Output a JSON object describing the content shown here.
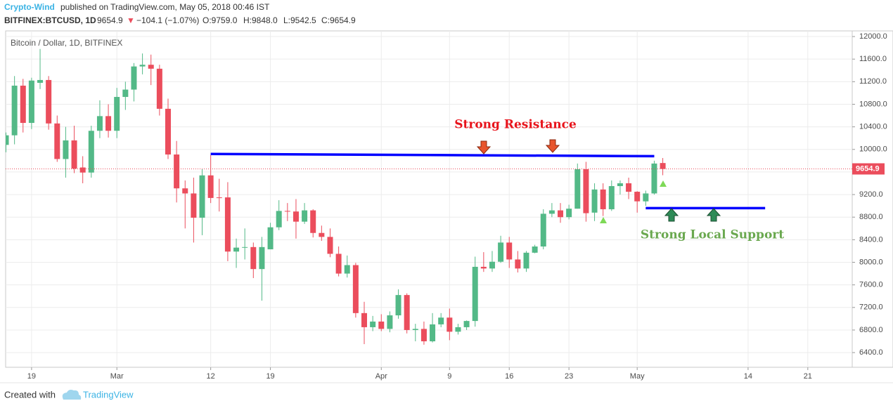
{
  "header": {
    "author": "Crypto-Wind",
    "published": "published on TradingView.com, May 05, 2018 00:46 IST"
  },
  "quote": {
    "symbol": "BITFINEX:BTCUSD, 1D",
    "last": "9654.9",
    "arrow": "▼",
    "change": "−104.1 (−1.07%)",
    "open": "O:9759.0",
    "high": "H:9848.0",
    "low": "L:9542.5",
    "close": "C:9654.9"
  },
  "chart_data": {
    "type": "candlestick",
    "title": "Bitcoin / Dollar, 1D, BITFINEX",
    "x": [
      "2018-02-16",
      "2018-02-17",
      "2018-02-18",
      "2018-02-19",
      "2018-02-20",
      "2018-02-21",
      "2018-02-22",
      "2018-02-23",
      "2018-02-24",
      "2018-02-25",
      "2018-02-26",
      "2018-02-27",
      "2018-02-28",
      "2018-03-01",
      "2018-03-02",
      "2018-03-03",
      "2018-03-04",
      "2018-03-05",
      "2018-03-06",
      "2018-03-07",
      "2018-03-08",
      "2018-03-09",
      "2018-03-10",
      "2018-03-11",
      "2018-03-12",
      "2018-03-13",
      "2018-03-14",
      "2018-03-15",
      "2018-03-16",
      "2018-03-17",
      "2018-03-18",
      "2018-03-19",
      "2018-03-20",
      "2018-03-21",
      "2018-03-22",
      "2018-03-23",
      "2018-03-24",
      "2018-03-25",
      "2018-03-26",
      "2018-03-27",
      "2018-03-28",
      "2018-03-29",
      "2018-03-30",
      "2018-03-31",
      "2018-04-01",
      "2018-04-02",
      "2018-04-03",
      "2018-04-04",
      "2018-04-05",
      "2018-04-06",
      "2018-04-07",
      "2018-04-08",
      "2018-04-09",
      "2018-04-10",
      "2018-04-11",
      "2018-04-12",
      "2018-04-13",
      "2018-04-14",
      "2018-04-15",
      "2018-04-16",
      "2018-04-17",
      "2018-04-18",
      "2018-04-19",
      "2018-04-20",
      "2018-04-21",
      "2018-04-22",
      "2018-04-23",
      "2018-04-24",
      "2018-04-25",
      "2018-04-26",
      "2018-04-27",
      "2018-04-28",
      "2018-04-29",
      "2018-04-30",
      "2018-05-01",
      "2018-05-02",
      "2018-05-03",
      "2018-05-04"
    ],
    "open": [
      10080,
      10250,
      11130,
      10470,
      11180,
      11230,
      10460,
      9830,
      10160,
      9680,
      9590,
      10330,
      10590,
      10330,
      10930,
      11060,
      11470,
      11500,
      11430,
      10720,
      9910,
      9310,
      9220,
      8790,
      9540,
      9150,
      9150,
      8190,
      8260,
      8270,
      7880,
      8230,
      8620,
      8910,
      8900,
      8720,
      8920,
      8520,
      8450,
      8150,
      7800,
      7950,
      7100,
      6850,
      6950,
      6820,
      7060,
      7420,
      6800,
      6820,
      6600,
      6900,
      7020,
      6770,
      6850,
      6960,
      7920,
      7890,
      8010,
      8350,
      8050,
      7890,
      8170,
      8280,
      8860,
      8920,
      8800,
      8950,
      9650,
      8880,
      9290,
      8940,
      9350,
      9400,
      9250,
      9080,
      9220,
      9759
    ],
    "high": [
      10300,
      11300,
      11250,
      11270,
      11780,
      11300,
      10600,
      10400,
      10420,
      9880,
      10420,
      10870,
      10800,
      11090,
      11200,
      11530,
      11700,
      11680,
      11500,
      10900,
      10150,
      9450,
      9500,
      9650,
      9900,
      9480,
      9420,
      8420,
      8600,
      8350,
      8450,
      8700,
      9100,
      9050,
      9120,
      9050,
      8940,
      8650,
      8600,
      8280,
      8120,
      7990,
      7300,
      7050,
      7080,
      7130,
      7520,
      7450,
      6910,
      6950,
      7100,
      7100,
      7180,
      6910,
      6970,
      8100,
      8180,
      8200,
      8470,
      8450,
      8200,
      8200,
      8310,
      8940,
      9050,
      9050,
      9020,
      9750,
      9780,
      9400,
      9400,
      9450,
      9450,
      9500,
      9260,
      9270,
      9800,
      9848
    ],
    "low": [
      9950,
      10090,
      10300,
      10360,
      11070,
      10350,
      9780,
      9500,
      9580,
      9400,
      9500,
      10200,
      10210,
      10200,
      10700,
      10850,
      11330,
      11140,
      10600,
      9830,
      9060,
      8600,
      8350,
      8480,
      9050,
      8900,
      8020,
      7900,
      8050,
      7720,
      7320,
      8230,
      8570,
      8730,
      8420,
      8680,
      8440,
      8380,
      8090,
      7750,
      7730,
      7020,
      6550,
      6780,
      6780,
      6760,
      7000,
      6740,
      6600,
      6540,
      6580,
      6850,
      6620,
      6720,
      6800,
      6860,
      7830,
      7830,
      7990,
      7900,
      7820,
      7830,
      8160,
      8230,
      8800,
      8700,
      8760,
      8950,
      8720,
      8730,
      8820,
      8910,
      9200,
      9120,
      8880,
      9000,
      9200,
      9542.5
    ],
    "close": [
      10250,
      11130,
      10470,
      11220,
      11230,
      10460,
      9830,
      10160,
      9660,
      9590,
      10330,
      10590,
      10330,
      10930,
      11060,
      11470,
      11500,
      11430,
      10720,
      9910,
      9310,
      9220,
      8790,
      9540,
      9140,
      9140,
      8190,
      8260,
      8270,
      7880,
      8270,
      8620,
      8910,
      8900,
      8720,
      8920,
      8520,
      8450,
      8150,
      7800,
      7950,
      7100,
      6850,
      6950,
      6820,
      7060,
      7420,
      6800,
      6820,
      6600,
      6900,
      7020,
      6770,
      6850,
      6960,
      7920,
      7890,
      8010,
      8350,
      8050,
      7890,
      8170,
      8280,
      8860,
      8920,
      8800,
      8950,
      9650,
      8870,
      9290,
      8940,
      9350,
      9400,
      9250,
      9080,
      9220,
      9750,
      9654.9
    ],
    "up_color": "#53b987",
    "down_color": "#eb4d5c",
    "xlim": [
      "2018-02-15T23:00Z",
      "2018-05-26T05:00Z"
    ],
    "xticks": [
      {
        "value": "2018-02-19",
        "label": "19"
      },
      {
        "value": "2018-03-01",
        "label": "Mar"
      },
      {
        "value": "2018-03-12",
        "label": "12"
      },
      {
        "value": "2018-03-19",
        "label": "19"
      },
      {
        "value": "2018-04-01",
        "label": "Apr"
      },
      {
        "value": "2018-04-09",
        "label": "9"
      },
      {
        "value": "2018-04-16",
        "label": "16"
      },
      {
        "value": "2018-04-23",
        "label": "23"
      },
      {
        "value": "2018-05-01",
        "label": "May"
      },
      {
        "value": "2018-05-14",
        "label": "14"
      },
      {
        "value": "2018-05-21",
        "label": "21"
      }
    ],
    "ylim": [
      6140,
      12100
    ],
    "yticks": [
      {
        "value": 6400,
        "label": "6400.0"
      },
      {
        "value": 6800,
        "label": "6800.0"
      },
      {
        "value": 7200,
        "label": "7200.0"
      },
      {
        "value": 7600,
        "label": "7600.0"
      },
      {
        "value": 8000,
        "label": "8000.0"
      },
      {
        "value": 8400,
        "label": "8400.0"
      },
      {
        "value": 8800,
        "label": "8800.0"
      },
      {
        "value": 9200,
        "label": "9200.0"
      },
      {
        "value": 9600,
        "label": "9600.0"
      },
      {
        "value": 10000,
        "label": "10000.0"
      },
      {
        "value": 10400,
        "label": "10400.0"
      },
      {
        "value": 10800,
        "label": "10800.0"
      },
      {
        "value": 11200,
        "label": "11200.0"
      },
      {
        "value": 11600,
        "label": "11600.0"
      },
      {
        "value": 12000,
        "label": "12000.0"
      }
    ],
    "grid": true,
    "last_price": 9654.9,
    "last_price_color": "#eb4d5c",
    "lines": [
      {
        "x": [
          "2018-03-12",
          "2018-05-03"
        ],
        "y": [
          9920,
          9880
        ],
        "color": "#0000ff"
      },
      {
        "x": [
          "2018-05-02",
          "2018-05-16"
        ],
        "y": [
          8960,
          8960
        ],
        "color": "#0000ff"
      }
    ],
    "annotations": [
      "Strong Resistance",
      "Strong Local Support"
    ]
  },
  "footer": {
    "created": "Created with",
    "brand": "TradingView"
  }
}
